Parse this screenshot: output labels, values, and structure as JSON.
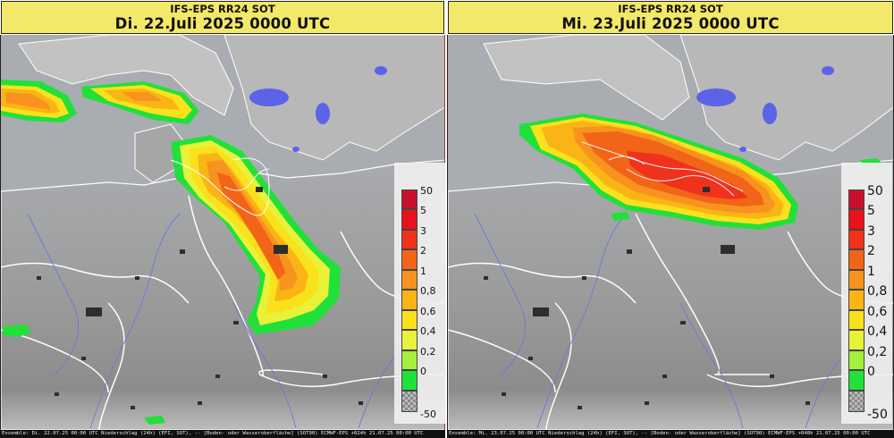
{
  "panels": [
    {
      "title": "IFS-EPS RR24 SOT",
      "date": "Di. 22.Juli 2025 0000 UTC",
      "footer": "Ensemble: Di. 22.07.25 00:00 UTC  Niederschlag (24h) (EFI, SOT), -- [Boden- oder Wasseroberfläche] (SOT90) ECMWF-EPS +024h  21.07.25 00:00 UTC"
    },
    {
      "title": "IFS-EPS RR24 SOT",
      "date": "Mi. 23.Juli 2025 0000 UTC",
      "footer": "Ensemble: Mi. 23.07.25 00:00 UTC  Niederschlag (24h) (EFI, SOT), -- [Boden- oder Wasseroberfläche] (SOT90) ECMWF-EPS +048h  21.07.25 00:00 UTC"
    }
  ],
  "legend": {
    "labels": [
      "50",
      "5",
      "3",
      "2",
      "1",
      "0,8",
      "0,6",
      "0,4",
      "0,2",
      "0",
      "-50"
    ],
    "colors": [
      "#c8102e",
      "#e8121c",
      "#f0321c",
      "#f26418",
      "#f7931e",
      "#fbb416",
      "#f9e21c",
      "#e8f23a",
      "#a4f03c",
      "#22e03a",
      "checker"
    ]
  },
  "colors": {
    "sea": "#a7aaae",
    "land": "#9e9e9e",
    "lake": "#5b63e6",
    "border": "#ffffff",
    "river": "#6b78d8",
    "city": "#333333"
  }
}
